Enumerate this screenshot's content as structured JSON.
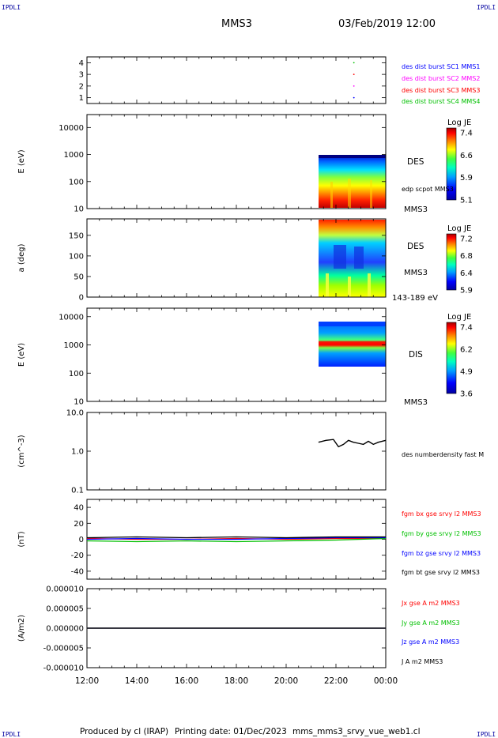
{
  "header": {
    "corner_label": "IPDLI",
    "spacecraft": "MMS3",
    "datetime": "03/Feb/2019 12:00"
  },
  "footer": {
    "produced_by": "Produced by cl (IRAP)",
    "printing_date": "Printing date: 01/Dec/2023",
    "filename": "mms_mms3_srvy_vue_web1.cl"
  },
  "colors": {
    "blue": "#0000ff",
    "magenta": "#ff00ff",
    "red": "#ff0000",
    "green": "#00c000",
    "black": "#000000"
  },
  "chart_data": [
    {
      "type": "scatter",
      "panel": "burst-availability",
      "ylim": [
        0.5,
        4.5
      ],
      "ytick_labels": [
        "1",
        "2",
        "3",
        "4"
      ],
      "xlim": [
        12,
        24
      ],
      "series": [
        {
          "name": "des dist burst SC1 MMS1",
          "color": "#0000ff",
          "x": [
            22.72
          ],
          "y": [
            1
          ]
        },
        {
          "name": "des dist burst SC2 MMS2",
          "color": "#ff00ff",
          "x": [
            22.72
          ],
          "y": [
            2
          ]
        },
        {
          "name": "des dist burst SC3 MMS3",
          "color": "#ff0000",
          "x": [
            22.72
          ],
          "y": [
            3
          ]
        },
        {
          "name": "des dist burst SC4 MMS4",
          "color": "#00c000",
          "x": [
            22.72
          ],
          "y": [
            4
          ]
        }
      ]
    },
    {
      "type": "heatmap",
      "panel": "des-energy-spectrogram",
      "ylabel": "E (eV)",
      "log_y": true,
      "ylim": [
        10,
        30000
      ],
      "ytick_labels": [
        "10",
        "100",
        "1000",
        "10000"
      ],
      "xlim": [
        12,
        24
      ],
      "data_x_range": [
        21.3,
        24
      ],
      "data_y_range": [
        10,
        1000
      ],
      "colorbar_title": "Log JE",
      "colorbar_ticks": [
        "7.4",
        "6.6",
        "5.9",
        "5.1"
      ],
      "labels": [
        "DES",
        "edp scpot MMS3",
        "MMS3"
      ]
    },
    {
      "type": "heatmap",
      "panel": "des-pitch-angle",
      "ylabel": "a (deg)",
      "ylim": [
        0,
        190
      ],
      "ytick_labels": [
        "0",
        "50",
        "100",
        "150"
      ],
      "xlim": [
        12,
        24
      ],
      "data_x_range": [
        21.3,
        24
      ],
      "data_y_range": [
        0,
        180
      ],
      "colorbar_title": "Log JE",
      "colorbar_ticks": [
        "7.2",
        "6.8",
        "6.4",
        "5.9"
      ],
      "labels": [
        "DES",
        "MMS3",
        "143-189 eV"
      ]
    },
    {
      "type": "heatmap",
      "panel": "dis-energy-spectrogram",
      "ylabel": "E (eV)",
      "log_y": true,
      "ylim": [
        10,
        20000
      ],
      "ytick_labels": [
        "10",
        "100",
        "1000",
        "10000"
      ],
      "xlim": [
        12,
        24
      ],
      "data_x_range": [
        21.3,
        24
      ],
      "data_y_range": [
        200,
        10000
      ],
      "colorbar_title": "Log JE",
      "colorbar_ticks": [
        "7.4",
        "6.2",
        "4.9",
        "3.6"
      ],
      "labels": [
        "DIS",
        "MMS3"
      ]
    },
    {
      "type": "line",
      "panel": "density",
      "ylabel": "(cm^-3)",
      "log_y": true,
      "ylim": [
        0.1,
        10
      ],
      "ytick_labels": [
        "0.1",
        "1.0",
        "10.0"
      ],
      "xlim": [
        12,
        24
      ],
      "series": [
        {
          "name": "des numberdensity fast M",
          "color": "#000000",
          "x": [
            21.3,
            21.6,
            21.9,
            22.1,
            22.3,
            22.5,
            22.7,
            22.9,
            23.1,
            23.3,
            23.5,
            23.7,
            24.0
          ],
          "y": [
            1.7,
            1.9,
            2.0,
            1.3,
            1.5,
            1.9,
            1.7,
            1.6,
            1.5,
            1.8,
            1.5,
            1.7,
            1.9
          ]
        }
      ]
    },
    {
      "type": "line",
      "panel": "fgm",
      "ylabel": "(nT)",
      "ylim": [
        -50,
        50
      ],
      "ytick_labels": [
        "-40",
        "-20",
        "0",
        "20",
        "40"
      ],
      "xlim": [
        12,
        24
      ],
      "series": [
        {
          "name": "fgm bx gse srvy l2 MMS3",
          "color": "#ff0000",
          "x": [
            12,
            14,
            16,
            18,
            20,
            22,
            24
          ],
          "y": [
            1,
            0,
            0,
            1,
            0,
            1,
            1
          ]
        },
        {
          "name": "fgm by gse srvy l2 MMS3",
          "color": "#00c000",
          "x": [
            12,
            14,
            16,
            18,
            20,
            22,
            24
          ],
          "y": [
            -2,
            -3,
            -2,
            -3,
            -2,
            -1,
            1
          ]
        },
        {
          "name": "fgm bz gse srvy l2 MMS3",
          "color": "#0000ff",
          "x": [
            12,
            14,
            16,
            18,
            20,
            22,
            24
          ],
          "y": [
            0,
            1,
            0,
            0,
            1,
            2,
            2
          ]
        },
        {
          "name": "fgm bt gse srvy l2 MMS3",
          "color": "#000000",
          "x": [
            12,
            14,
            16,
            18,
            20,
            22,
            24
          ],
          "y": [
            2,
            3,
            2,
            3,
            2,
            3,
            3
          ]
        }
      ]
    },
    {
      "type": "line",
      "panel": "current-density",
      "ylabel": "(A/m2)",
      "ylim": [
        -1e-05,
        1e-05
      ],
      "ytick_labels": [
        "-0.000010",
        "-0.000005",
        "0.000000",
        "0.000005",
        "0.000010"
      ],
      "xlim": [
        12,
        24
      ],
      "series": [
        {
          "name": "Jx gse A m2 MMS3",
          "color": "#ff0000",
          "x": [
            12,
            24
          ],
          "y": [
            0,
            0
          ]
        },
        {
          "name": "Jy gse A m2 MMS3",
          "color": "#00c000",
          "x": [
            12,
            24
          ],
          "y": [
            0,
            0
          ]
        },
        {
          "name": "Jz gse A m2 MMS3",
          "color": "#0000ff",
          "x": [
            12,
            24
          ],
          "y": [
            0,
            0
          ]
        },
        {
          "name": "J A m2 MMS3",
          "color": "#000000",
          "x": [
            12,
            24
          ],
          "y": [
            0,
            0
          ]
        }
      ]
    }
  ],
  "x_axis": {
    "tick_labels": [
      "12:00",
      "14:00",
      "16:00",
      "18:00",
      "20:00",
      "22:00",
      "00:00"
    ],
    "tick_values": [
      12,
      14,
      16,
      18,
      20,
      22,
      24
    ]
  }
}
